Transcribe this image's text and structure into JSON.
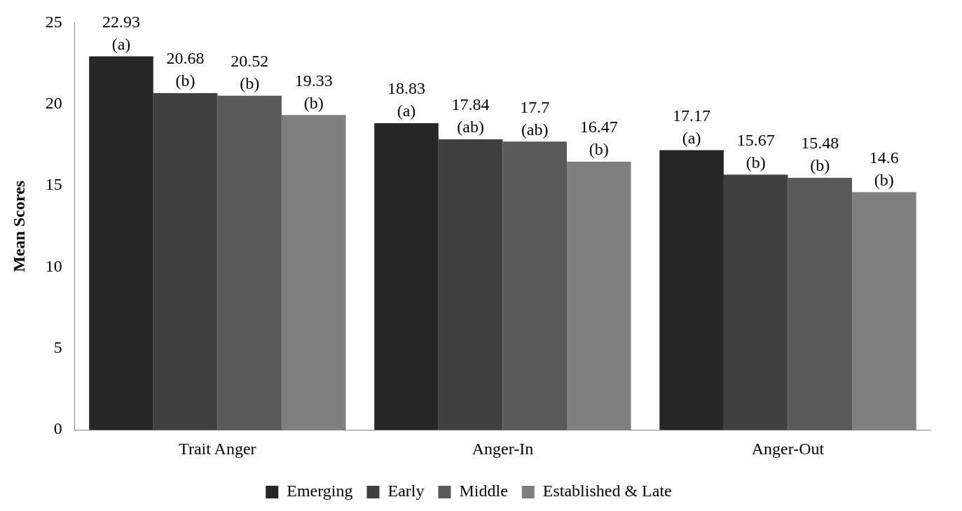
{
  "chart_data": {
    "type": "bar",
    "ylabel": "Mean Scores",
    "categories": [
      "Trait Anger",
      "Anger-In",
      "Anger-Out"
    ],
    "series": [
      {
        "name": "Emerging",
        "color": "#262626",
        "values": [
          22.93,
          18.83,
          17.17
        ],
        "value_labels": [
          "22.93\n(a)",
          "18.83\n(a)",
          "17.17\n(a)"
        ]
      },
      {
        "name": "Early",
        "color": "#404040",
        "values": [
          20.68,
          17.84,
          15.67
        ],
        "value_labels": [
          "20.68\n(b)",
          "17.84\n(ab)",
          "15.67\n(b)"
        ]
      },
      {
        "name": "Middle",
        "color": "#595959",
        "values": [
          20.52,
          17.7,
          15.48
        ],
        "value_labels": [
          "20.52\n(b)",
          "17.7\n(ab)",
          "15.48\n(b)"
        ]
      },
      {
        "name": "Established & Late",
        "color": "#7f7f7f",
        "values": [
          19.33,
          16.47,
          14.6
        ],
        "value_labels": [
          "19.33\n(b)",
          "16.47\n(b)",
          "14.6\n(b)"
        ]
      }
    ],
    "ylim": [
      0,
      25
    ],
    "yticks": [
      0,
      5,
      10,
      15,
      20,
      25
    ],
    "grid": false,
    "legend": "bottom"
  }
}
